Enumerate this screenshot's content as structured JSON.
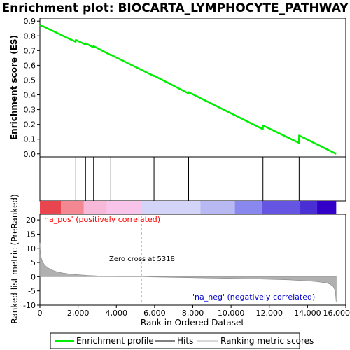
{
  "chart_data": {
    "type": "line",
    "title": "Enrichment plot: BIOCARTA_LYMPHOCYTE_PATHWAY",
    "xlabel": "Rank in Ordered Dataset",
    "ylabel_top": "Enrichment score (ES)",
    "ylabel_bottom": "Ranked list metric (PreRanked)",
    "xlim": [
      0,
      16000
    ],
    "x_ticks": [
      "0",
      "2,000",
      "4,000",
      "6,000",
      "8,000",
      "10,000",
      "12,000",
      "14,000",
      "16,000"
    ],
    "x_tick_values": [
      0,
      2000,
      4000,
      6000,
      8000,
      10000,
      12000,
      14000,
      16000
    ],
    "es_ylim": [
      -0.02,
      0.92
    ],
    "es_ticks": [
      "0.0",
      "0.1",
      "0.2",
      "0.3",
      "0.4",
      "0.5",
      "0.6",
      "0.7",
      "0.8",
      "0.9"
    ],
    "es_tick_values": [
      0.0,
      0.1,
      0.2,
      0.3,
      0.4,
      0.5,
      0.6,
      0.7,
      0.8,
      0.9
    ],
    "metric_ylim": [
      -10,
      22
    ],
    "metric_ticks": [
      "-10",
      "-5",
      "0",
      "5",
      "10",
      "15",
      "20"
    ],
    "metric_tick_values": [
      -10,
      -5,
      0,
      5,
      10,
      15,
      20
    ],
    "total_genes": 15500,
    "enrichment_profile": {
      "name": "Enrichment profile",
      "color": "#00ee00",
      "x": [
        0,
        1870,
        1880,
        2380,
        2390,
        2800,
        2810,
        3700,
        3710,
        5960,
        5970,
        7770,
        7780,
        11660,
        11670,
        13550,
        13560,
        15500
      ],
      "y": [
        0.875,
        0.76,
        0.772,
        0.742,
        0.75,
        0.722,
        0.73,
        0.67,
        0.672,
        0.528,
        0.53,
        0.41,
        0.418,
        0.168,
        0.193,
        0.075,
        0.125,
        0.0
      ]
    },
    "hits": {
      "name": "Hits",
      "x": [
        1880,
        2390,
        2810,
        3710,
        5970,
        7780,
        11670,
        13560
      ]
    },
    "ranking_metric": {
      "name": "Ranking metric scores",
      "x": [
        0,
        20,
        60,
        120,
        200,
        300,
        450,
        650,
        900,
        1200,
        1600,
        2000,
        2500,
        3000,
        4000,
        5000,
        5318,
        6000,
        8000,
        10000,
        12000,
        13000,
        14000,
        14500,
        15000,
        15200,
        15350,
        15450,
        15500
      ],
      "y": [
        12.0,
        9.0,
        7.0,
        5.6,
        4.6,
        3.8,
        3.0,
        2.3,
        1.7,
        1.3,
        0.9,
        0.7,
        0.45,
        0.3,
        0.15,
        0.05,
        0.0,
        -0.1,
        -0.35,
        -0.6,
        -0.9,
        -1.1,
        -1.45,
        -1.75,
        -2.2,
        -2.7,
        -3.5,
        -5.0,
        -9.0
      ]
    },
    "color_bar": [
      {
        "from": 0,
        "to": 1100,
        "color": "#e8454f"
      },
      {
        "from": 1100,
        "to": 2300,
        "color": "#f48892"
      },
      {
        "from": 2300,
        "to": 3500,
        "color": "#f8b8d8"
      },
      {
        "from": 3500,
        "to": 5300,
        "color": "#f9c4ea"
      },
      {
        "from": 5300,
        "to": 8400,
        "color": "#d4d4f8"
      },
      {
        "from": 8400,
        "to": 10200,
        "color": "#b8b8f2"
      },
      {
        "from": 10200,
        "to": 11600,
        "color": "#8888ee"
      },
      {
        "from": 11600,
        "to": 13600,
        "color": "#6655e2"
      },
      {
        "from": 13600,
        "to": 14500,
        "color": "#4a2fd4"
      },
      {
        "from": 14500,
        "to": 15500,
        "color": "#3200c8"
      }
    ],
    "annotations": {
      "pos_label": "'na_pos' (positively correlated)",
      "neg_label": "'na_neg' (negatively correlated)",
      "zero_cross": "Zero cross at 5318",
      "zero_cross_x": 5318
    },
    "colors": {
      "pos_label": "#ff0000",
      "neg_label": "#0000cc",
      "hit_line": "#000000",
      "metric_fill": "#b0b0b0"
    },
    "legend": {
      "placement": "bottom",
      "items": [
        {
          "label": "Enrichment profile",
          "color": "#00ee00"
        },
        {
          "label": "Hits",
          "color": "#000000"
        },
        {
          "label": "Ranking metric scores",
          "color": "#b0b0b0"
        }
      ]
    }
  }
}
